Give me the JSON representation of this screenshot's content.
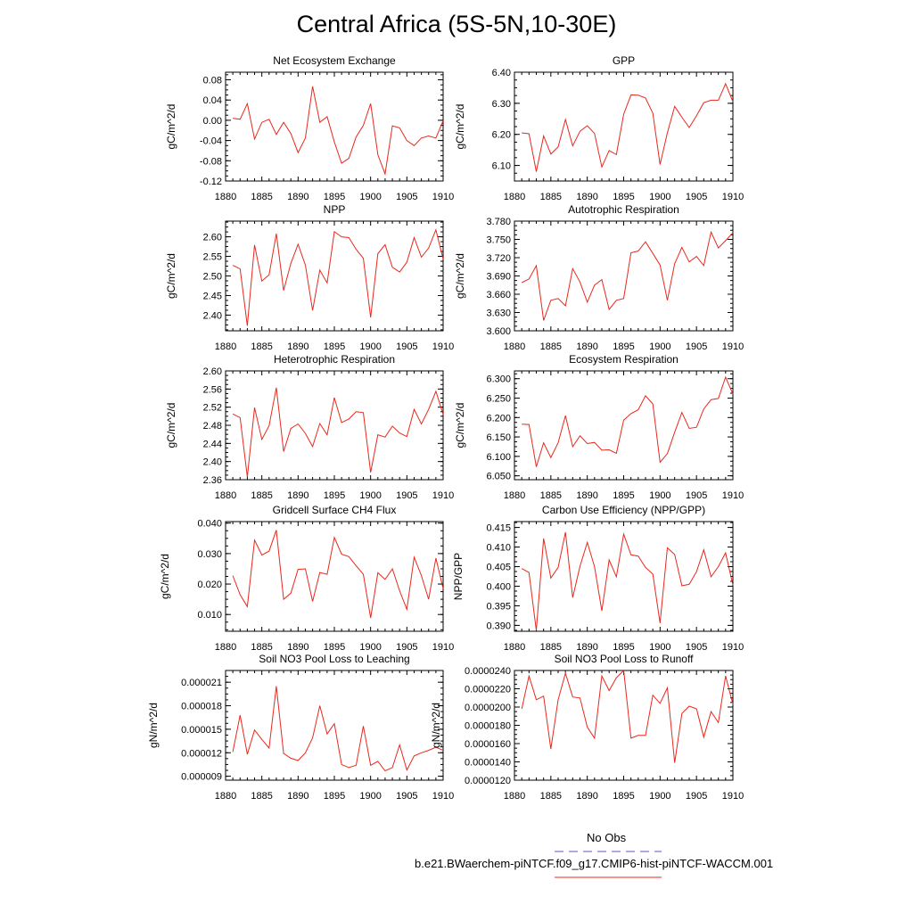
{
  "title": "Central Africa (5S-5N,10-30E)",
  "legend": {
    "obs_label": "No Obs",
    "obs_color": "#5555cc",
    "model_label": "b.e21.BWaerchem-piNTCF.f09_g17.CMIP6-hist-piNTCF-WACCM.001",
    "model_color": "#e8281e"
  },
  "chart_data": [
    {
      "type": "line",
      "title": "Net Ecosystem Exchange",
      "ylabel": "gC/m^2/d",
      "xlim": [
        1880,
        1910
      ],
      "ylim": [
        -0.12,
        0.095
      ],
      "xticks": [
        "1880",
        "1885",
        "1890",
        "1895",
        "1900",
        "1905",
        "1910"
      ],
      "yticks": [
        "-0.12",
        "-0.08",
        "-0.04",
        "0.00",
        "0.04",
        "0.08"
      ],
      "series": [
        {
          "x": [
            1881,
            1882,
            1883,
            1884,
            1885,
            1886,
            1887,
            1888,
            1889,
            1890,
            1891,
            1892,
            1893,
            1894,
            1895,
            1896,
            1897,
            1898,
            1899,
            1900,
            1901,
            1902,
            1903,
            1904,
            1905,
            1906,
            1907,
            1908,
            1909,
            1910
          ],
          "values": [
            0.004,
            0.002,
            0.033,
            -0.037,
            -0.004,
            0.002,
            -0.028,
            -0.004,
            -0.026,
            -0.064,
            -0.035,
            0.067,
            -0.004,
            0.007,
            -0.043,
            -0.085,
            -0.075,
            -0.033,
            -0.01,
            0.033,
            -0.068,
            -0.106,
            -0.011,
            -0.015,
            -0.04,
            -0.05,
            -0.035,
            -0.031,
            -0.035,
            -0.001
          ]
        }
      ]
    },
    {
      "type": "line",
      "title": "GPP",
      "ylabel": "gC/m^2/d",
      "xlim": [
        1880,
        1910
      ],
      "ylim": [
        6.05,
        6.4
      ],
      "xticks": [
        "1880",
        "1885",
        "1890",
        "1895",
        "1900",
        "1905",
        "1910"
      ],
      "yticks": [
        "6.10",
        "6.20",
        "6.30",
        "6.40"
      ],
      "series": [
        {
          "x": [
            1881,
            1882,
            1883,
            1884,
            1885,
            1886,
            1887,
            1888,
            1889,
            1890,
            1891,
            1892,
            1893,
            1894,
            1895,
            1896,
            1897,
            1898,
            1899,
            1900,
            1901,
            1902,
            1903,
            1904,
            1905,
            1906,
            1907,
            1908,
            1909,
            1910
          ],
          "values": [
            6.205,
            6.202,
            6.08,
            6.195,
            6.137,
            6.16,
            6.248,
            6.163,
            6.21,
            6.228,
            6.203,
            6.095,
            6.148,
            6.135,
            6.265,
            6.327,
            6.326,
            6.317,
            6.268,
            6.103,
            6.205,
            6.29,
            6.255,
            6.222,
            6.26,
            6.302,
            6.31,
            6.31,
            6.363,
            6.305
          ]
        }
      ]
    },
    {
      "type": "line",
      "title": "NPP",
      "ylabel": "gC/m^2/d",
      "xlim": [
        1880,
        1910
      ],
      "ylim": [
        2.36,
        2.64
      ],
      "xticks": [
        "1880",
        "1885",
        "1890",
        "1895",
        "1900",
        "1905",
        "1910"
      ],
      "yticks": [
        "2.40",
        "2.45",
        "2.50",
        "2.55",
        "2.60"
      ],
      "series": [
        {
          "x": [
            1881,
            1882,
            1883,
            1884,
            1885,
            1886,
            1887,
            1888,
            1889,
            1890,
            1891,
            1892,
            1893,
            1894,
            1895,
            1896,
            1897,
            1898,
            1899,
            1900,
            1901,
            1902,
            1903,
            1904,
            1905,
            1906,
            1907,
            1908,
            1909,
            1910
          ],
          "values": [
            2.527,
            2.518,
            2.373,
            2.579,
            2.487,
            2.503,
            2.608,
            2.463,
            2.532,
            2.581,
            2.528,
            2.412,
            2.515,
            2.482,
            2.613,
            2.6,
            2.598,
            2.568,
            2.545,
            2.394,
            2.557,
            2.58,
            2.522,
            2.51,
            2.535,
            2.598,
            2.548,
            2.571,
            2.618,
            2.543
          ]
        }
      ]
    },
    {
      "type": "line",
      "title": "Autotrophic Respiration",
      "ylabel": "gC/m^2/d",
      "xlim": [
        1880,
        1910
      ],
      "ylim": [
        3.6,
        3.78
      ],
      "xticks": [
        "1880",
        "1885",
        "1890",
        "1895",
        "1900",
        "1905",
        "1910"
      ],
      "yticks": [
        "3.600",
        "3.630",
        "3.660",
        "3.690",
        "3.720",
        "3.750",
        "3.780"
      ],
      "series": [
        {
          "x": [
            1881,
            1882,
            1883,
            1884,
            1885,
            1886,
            1887,
            1888,
            1889,
            1890,
            1891,
            1892,
            1893,
            1894,
            1895,
            1896,
            1897,
            1898,
            1899,
            1900,
            1901,
            1902,
            1903,
            1904,
            1905,
            1906,
            1907,
            1908,
            1909,
            1910
          ],
          "values": [
            3.679,
            3.685,
            3.707,
            3.617,
            3.65,
            3.653,
            3.641,
            3.702,
            3.68,
            3.647,
            3.675,
            3.684,
            3.635,
            3.65,
            3.653,
            3.728,
            3.731,
            3.746,
            3.727,
            3.708,
            3.65,
            3.71,
            3.737,
            3.713,
            3.722,
            3.707,
            3.762,
            3.736,
            3.748,
            3.761
          ]
        }
      ]
    },
    {
      "type": "line",
      "title": "Heterotrophic Respiration",
      "ylabel": "gC/m^2/d",
      "xlim": [
        1880,
        1910
      ],
      "ylim": [
        2.36,
        2.6
      ],
      "xticks": [
        "1880",
        "1885",
        "1890",
        "1895",
        "1900",
        "1905",
        "1910"
      ],
      "yticks": [
        "2.36",
        "2.40",
        "2.44",
        "2.48",
        "2.52",
        "2.56",
        "2.60"
      ],
      "series": [
        {
          "x": [
            1881,
            1882,
            1883,
            1884,
            1885,
            1886,
            1887,
            1888,
            1889,
            1890,
            1891,
            1892,
            1893,
            1894,
            1895,
            1896,
            1897,
            1898,
            1899,
            1900,
            1901,
            1902,
            1903,
            1904,
            1905,
            1906,
            1907,
            1908,
            1909,
            1910
          ],
          "values": [
            2.505,
            2.497,
            2.366,
            2.519,
            2.449,
            2.479,
            2.563,
            2.422,
            2.473,
            2.483,
            2.462,
            2.433,
            2.484,
            2.459,
            2.541,
            2.486,
            2.494,
            2.51,
            2.508,
            2.376,
            2.459,
            2.454,
            2.478,
            2.463,
            2.455,
            2.515,
            2.483,
            2.515,
            2.555,
            2.504
          ]
        }
      ]
    },
    {
      "type": "line",
      "title": "Ecosystem Respiration",
      "ylabel": "gC/m^2/d",
      "xlim": [
        1880,
        1910
      ],
      "ylim": [
        6.04,
        6.32
      ],
      "xticks": [
        "1880",
        "1885",
        "1890",
        "1895",
        "1900",
        "1905",
        "1910"
      ],
      "yticks": [
        "6.050",
        "6.100",
        "6.150",
        "6.200",
        "6.250",
        "6.300"
      ],
      "series": [
        {
          "x": [
            1881,
            1882,
            1883,
            1884,
            1885,
            1886,
            1887,
            1888,
            1889,
            1890,
            1891,
            1892,
            1893,
            1894,
            1895,
            1896,
            1897,
            1898,
            1899,
            1900,
            1901,
            1902,
            1903,
            1904,
            1905,
            1906,
            1907,
            1908,
            1909,
            1910
          ],
          "values": [
            6.183,
            6.182,
            6.073,
            6.135,
            6.097,
            6.135,
            6.205,
            6.125,
            6.153,
            6.133,
            6.136,
            6.116,
            6.117,
            6.108,
            6.193,
            6.21,
            6.22,
            6.256,
            6.235,
            6.085,
            6.107,
            6.162,
            6.213,
            6.172,
            6.175,
            6.222,
            6.246,
            6.249,
            6.304,
            6.26
          ]
        }
      ]
    },
    {
      "type": "line",
      "title": "Gridcell Surface CH4 Flux",
      "ylabel": "gC/m^2/d",
      "xlim": [
        1880,
        1910
      ],
      "ylim": [
        0.0045,
        0.0405
      ],
      "xticks": [
        "1880",
        "1885",
        "1890",
        "1895",
        "1900",
        "1905",
        "1910"
      ],
      "yticks": [
        "0.010",
        "0.020",
        "0.030",
        "0.040"
      ],
      "series": [
        {
          "x": [
            1881,
            1882,
            1883,
            1884,
            1885,
            1886,
            1887,
            1888,
            1889,
            1890,
            1891,
            1892,
            1893,
            1894,
            1895,
            1896,
            1897,
            1898,
            1899,
            1900,
            1901,
            1902,
            1903,
            1904,
            1905,
            1906,
            1907,
            1908,
            1909,
            1910
          ],
          "values": [
            0.0228,
            0.0165,
            0.0126,
            0.0344,
            0.0295,
            0.0308,
            0.0377,
            0.015,
            0.017,
            0.0248,
            0.025,
            0.0143,
            0.0238,
            0.0232,
            0.0353,
            0.0298,
            0.029,
            0.026,
            0.0232,
            0.0089,
            0.0237,
            0.0215,
            0.025,
            0.0178,
            0.0117,
            0.0288,
            0.0228,
            0.015,
            0.0285,
            0.0185
          ]
        }
      ]
    },
    {
      "type": "line",
      "title": "Carbon Use Efficiency (NPP/GPP)",
      "ylabel": "NPP/GPP",
      "xlim": [
        1880,
        1910
      ],
      "ylim": [
        0.3885,
        0.4165
      ],
      "xticks": [
        "1880",
        "1885",
        "1890",
        "1895",
        "1900",
        "1905",
        "1910"
      ],
      "yticks": [
        "0.390",
        "0.395",
        "0.400",
        "0.405",
        "0.410",
        "0.415"
      ],
      "series": [
        {
          "x": [
            1881,
            1882,
            1883,
            1884,
            1885,
            1886,
            1887,
            1888,
            1889,
            1890,
            1891,
            1892,
            1893,
            1894,
            1895,
            1896,
            1897,
            1898,
            1899,
            1900,
            1901,
            1902,
            1903,
            1904,
            1905,
            1906,
            1907,
            1908,
            1909,
            1910
          ],
          "values": [
            0.4045,
            0.4035,
            0.3887,
            0.4122,
            0.4021,
            0.4048,
            0.4138,
            0.3971,
            0.4051,
            0.4112,
            0.405,
            0.3937,
            0.4067,
            0.4024,
            0.4133,
            0.408,
            0.4077,
            0.4048,
            0.4031,
            0.3906,
            0.4098,
            0.4081,
            0.4001,
            0.4005,
            0.4037,
            0.4093,
            0.4024,
            0.405,
            0.4085,
            0.4003
          ]
        }
      ]
    },
    {
      "type": "line",
      "title": "Soil NO3 Pool Loss to Leaching",
      "ylabel": "gN/m^2/d",
      "xlim": [
        1880,
        1910
      ],
      "ylim": [
        8.5e-06,
        2.25e-05
      ],
      "xticks": [
        "1880",
        "1885",
        "1890",
        "1895",
        "1900",
        "1905",
        "1910"
      ],
      "yticks": [
        "0.000009",
        "0.000012",
        "0.000015",
        "0.000018",
        "0.000021"
      ],
      "series": [
        {
          "x": [
            1881,
            1882,
            1883,
            1884,
            1885,
            1886,
            1887,
            1888,
            1889,
            1890,
            1891,
            1892,
            1893,
            1894,
            1895,
            1896,
            1897,
            1898,
            1899,
            1900,
            1901,
            1902,
            1903,
            1904,
            1905,
            1906,
            1907,
            1908,
            1909,
            1910
          ],
          "values": [
            1.21e-05,
            1.68e-05,
            1.18e-05,
            1.49e-05,
            1.37e-05,
            1.26e-05,
            2.05e-05,
            1.19e-05,
            1.13e-05,
            1.1e-05,
            1.2e-05,
            1.39e-05,
            1.8e-05,
            1.44e-05,
            1.57e-05,
            1.05e-05,
            1.01e-05,
            1.04e-05,
            1.54e-05,
            1.04e-05,
            1.09e-05,
            9.7e-06,
            1.01e-05,
            1.3e-05,
            9.8e-06,
            1.16e-05,
            1.2e-05,
            1.23e-05,
            1.27e-05,
            1.23e-05
          ]
        }
      ]
    },
    {
      "type": "line",
      "title": "Soil NO3 Pool Loss to Runoff",
      "ylabel": "gN/m^2/d",
      "xlim": [
        1880,
        1910
      ],
      "ylim": [
        1.2e-05,
        2.4e-05
      ],
      "xticks": [
        "1880",
        "1885",
        "1890",
        "1895",
        "1900",
        "1905",
        "1910"
      ],
      "yticks": [
        "0.0000120",
        "0.0000140",
        "0.0000160",
        "0.0000180",
        "0.0000200",
        "0.0000220",
        "0.0000240"
      ],
      "series": [
        {
          "x": [
            1881,
            1882,
            1883,
            1884,
            1885,
            1886,
            1887,
            1888,
            1889,
            1890,
            1891,
            1892,
            1893,
            1894,
            1895,
            1896,
            1897,
            1898,
            1899,
            1900,
            1901,
            1902,
            1903,
            1904,
            1905,
            1906,
            1907,
            1908,
            1909,
            1910
          ],
          "values": [
            1.98e-05,
            2.34e-05,
            2.08e-05,
            2.12e-05,
            1.54e-05,
            2.08e-05,
            2.37e-05,
            2.11e-05,
            2.1e-05,
            1.78e-05,
            1.66e-05,
            2.34e-05,
            2.18e-05,
            2.32e-05,
            2.4e-05,
            1.66e-05,
            1.69e-05,
            1.69e-05,
            2.13e-05,
            2.04e-05,
            2.21e-05,
            1.39e-05,
            1.93e-05,
            2.01e-05,
            1.98e-05,
            1.67e-05,
            1.95e-05,
            1.83e-05,
            2.34e-05,
            2.03e-05
          ]
        }
      ]
    }
  ]
}
